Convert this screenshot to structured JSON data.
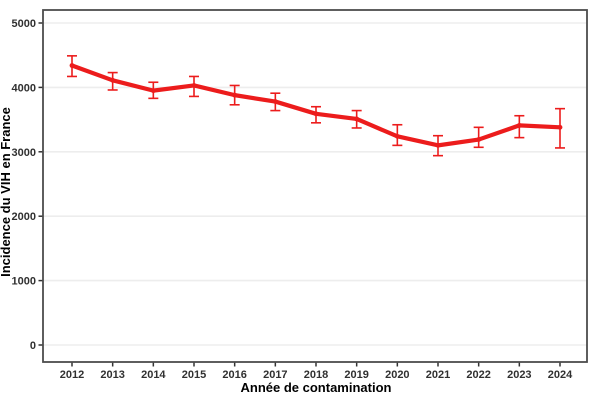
{
  "chart_data": {
    "type": "line",
    "title": "",
    "xlabel": "Année de contamination",
    "ylabel": "Incidence du VIH en France",
    "x": [
      2012,
      2013,
      2014,
      2015,
      2016,
      2017,
      2018,
      2019,
      2020,
      2021,
      2022,
      2023,
      2024
    ],
    "values": [
      4340,
      4110,
      3950,
      4030,
      3880,
      3780,
      3590,
      3510,
      3240,
      3100,
      3190,
      3410,
      3380
    ],
    "error_low": [
      4170,
      3960,
      3830,
      3860,
      3730,
      3640,
      3450,
      3370,
      3100,
      2940,
      3070,
      3220,
      3060
    ],
    "error_high": [
      4490,
      4230,
      4080,
      4170,
      4030,
      3910,
      3700,
      3640,
      3420,
      3250,
      3380,
      3560,
      3670
    ],
    "xticks": [
      "2012",
      "2013",
      "2014",
      "2015",
      "2016",
      "2017",
      "2018",
      "2019",
      "2020",
      "2021",
      "2022",
      "2023",
      "2024"
    ],
    "yticks": [
      "0",
      "1000",
      "2000",
      "3000",
      "4000",
      "5000"
    ],
    "ylim": [
      0,
      5000
    ],
    "grid": "horizontal-major",
    "legend": "none",
    "colors": {
      "line": "#EC1C1C",
      "gridline": "#EDEDED",
      "panel_border": "#4D4D4D",
      "tick_mark": "#333333",
      "tick_text": "#303030",
      "axis_title_text": "#000000",
      "background": "#FFFFFF"
    }
  }
}
